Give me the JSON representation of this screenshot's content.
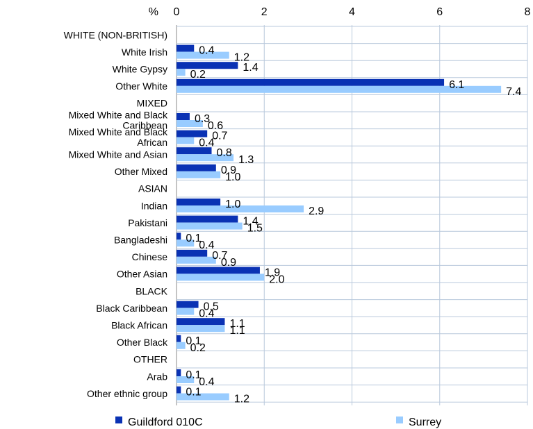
{
  "chart_data": {
    "type": "bar",
    "orientation": "horizontal",
    "unit_label": "%",
    "title": "",
    "xlabel": "",
    "ylabel": "",
    "xlim": [
      0,
      8
    ],
    "x_ticks": [
      0,
      2,
      4,
      6,
      8
    ],
    "x_tick_labels": [
      "0",
      "2",
      "4",
      "6",
      "8"
    ],
    "x_axis_position": "top",
    "grid": true,
    "legend_position": "bottom",
    "categories": [
      "WHITE (NON-BRITISH)",
      "White Irish",
      "White Gypsy",
      "Other White",
      "MIXED",
      "Mixed White and Black Caribbean",
      "Mixed White and Black African",
      "Mixed White and Asian",
      "Other Mixed",
      "ASIAN",
      "Indian",
      "Pakistani",
      "Bangladeshi",
      "Chinese",
      "Other Asian",
      "BLACK",
      "Black Caribbean",
      "Black African",
      "Other Black",
      "OTHER",
      "Arab",
      "Other ethnic group"
    ],
    "series": [
      {
        "name": "Guildford 010C",
        "color": "#0a32b4",
        "values": [
          null,
          0.4,
          1.4,
          6.1,
          null,
          0.3,
          0.7,
          0.8,
          0.9,
          null,
          1.0,
          1.4,
          0.1,
          0.7,
          1.9,
          null,
          0.5,
          1.1,
          0.1,
          null,
          0.1,
          0.1
        ],
        "labels": [
          "",
          "0.4",
          "1.4",
          "6.1",
          "",
          "0.3",
          "0.7",
          "0.8",
          "0.9",
          "",
          "1.0",
          "1.4",
          "0.1",
          "0.7",
          "1.9",
          "",
          "0.5",
          "1.1",
          "0.1",
          "",
          "0.1",
          "0.1"
        ]
      },
      {
        "name": "Surrey",
        "color": "#99ccff",
        "values": [
          null,
          1.2,
          0.2,
          7.4,
          null,
          0.6,
          0.4,
          1.3,
          1.0,
          null,
          2.9,
          1.5,
          0.4,
          0.9,
          2.0,
          null,
          0.4,
          1.1,
          0.2,
          null,
          0.4,
          1.2
        ],
        "labels": [
          "",
          "1.2",
          "0.2",
          "7.4",
          "",
          "0.6",
          "0.4",
          "1.3",
          "1.0",
          "",
          "2.9",
          "1.5",
          "0.4",
          "0.9",
          "2.0",
          "",
          "0.4",
          "1.1",
          "0.2",
          "",
          "0.4",
          "1.2"
        ]
      }
    ]
  }
}
